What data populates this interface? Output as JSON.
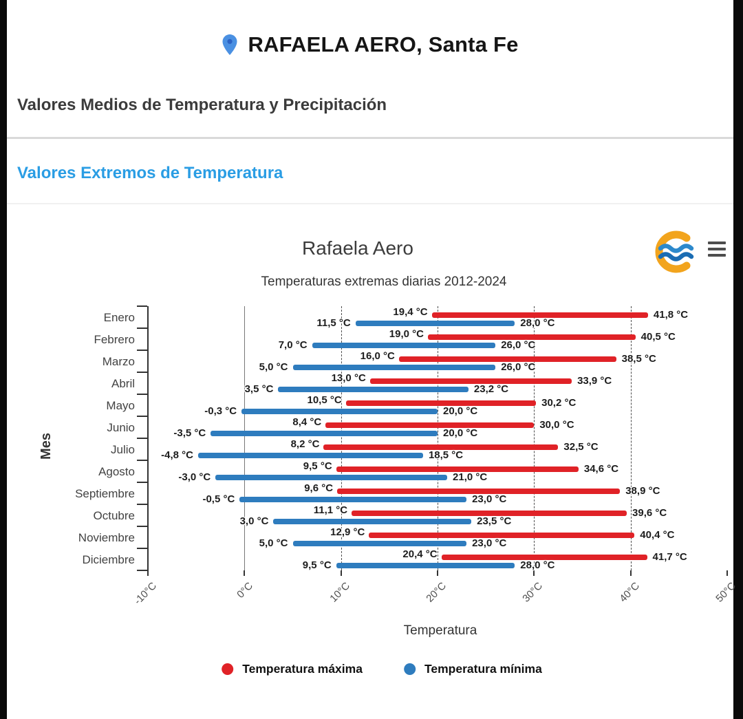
{
  "header": {
    "title": "RAFAELA AERO, Santa Fe"
  },
  "sections": {
    "medios_title": "Valores Medios de Temperatura y Precipitación",
    "extremos_title": "Valores Extremos de Temperatura"
  },
  "colors": {
    "extremos_link": "#2a9de4",
    "pin_blue": "#4a90e2",
    "pin_inner": "#2b62c4",
    "logo_orange": "#f2a41d",
    "logo_wave_dark": "#1a6cb3",
    "logo_wave_light": "#2c89cc",
    "max_red": "#e02227",
    "min_blue": "#2e7cbe"
  },
  "chart_data": {
    "type": "bar",
    "orientation": "horizontal-range",
    "title": "Rafaela Aero",
    "subtitle": "Temperaturas extremas diarias 2012-2024",
    "xlabel": "Temperatura",
    "ylabel": "Mes",
    "xlim": [
      -10,
      50
    ],
    "grid": "dashed-vertical",
    "legend_position": "bottom",
    "unit_suffix": " °C",
    "decimal_separator": ",",
    "x_ticks": [
      {
        "value": -10,
        "label": "-10°C"
      },
      {
        "value": 0,
        "label": "0°C"
      },
      {
        "value": 10,
        "label": "10°C"
      },
      {
        "value": 20,
        "label": "20°C"
      },
      {
        "value": 30,
        "label": "30°C"
      },
      {
        "value": 40,
        "label": "40°C"
      },
      {
        "value": 50,
        "label": "50°C"
      }
    ],
    "gridlines_at": [
      0,
      10,
      20,
      30,
      40
    ],
    "categories": [
      "Enero",
      "Febrero",
      "Marzo",
      "Abril",
      "Mayo",
      "Junio",
      "Julio",
      "Agosto",
      "Septiembre",
      "Octubre",
      "Noviembre",
      "Diciembre"
    ],
    "series": [
      {
        "name": "Temperatura máxima",
        "color": "#e02227",
        "ranges": [
          [
            19.4,
            41.8
          ],
          [
            19.0,
            40.5
          ],
          [
            16.0,
            38.5
          ],
          [
            13.0,
            33.9
          ],
          [
            10.5,
            30.2
          ],
          [
            8.4,
            30.0
          ],
          [
            8.2,
            32.5
          ],
          [
            9.5,
            34.6
          ],
          [
            9.6,
            38.9
          ],
          [
            11.1,
            39.6
          ],
          [
            12.9,
            40.4
          ],
          [
            20.4,
            41.7
          ]
        ]
      },
      {
        "name": "Temperatura mínima",
        "color": "#2e7cbe",
        "ranges": [
          [
            11.5,
            28.0
          ],
          [
            7.0,
            26.0
          ],
          [
            5.0,
            26.0
          ],
          [
            3.5,
            23.2
          ],
          [
            -0.3,
            20.0
          ],
          [
            -3.5,
            20.0
          ],
          [
            -4.8,
            18.5
          ],
          [
            -3.0,
            21.0
          ],
          [
            -0.5,
            23.0
          ],
          [
            3.0,
            23.5
          ],
          [
            5.0,
            23.0
          ],
          [
            9.5,
            28.0
          ]
        ]
      }
    ]
  }
}
